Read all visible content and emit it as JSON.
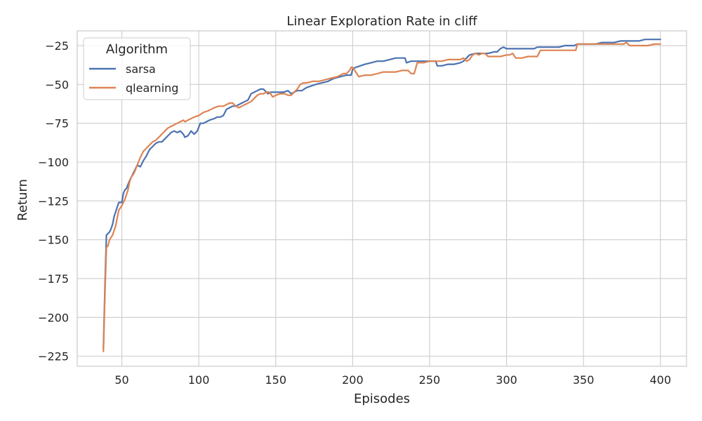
{
  "chart_data": {
    "type": "line",
    "title": "Linear Exploration Rate in cliff",
    "xlabel": "Episodes",
    "ylabel": "Return",
    "xlim": [
      21,
      417
    ],
    "ylim": [
      -231.5,
      -15.5
    ],
    "xticks": [
      50,
      100,
      150,
      200,
      250,
      300,
      350,
      400
    ],
    "yticks": [
      -25,
      -50,
      -75,
      -100,
      -125,
      -150,
      -175,
      -200,
      -225
    ],
    "grid": true,
    "legend": {
      "title": "Algorithm",
      "position": "top-left"
    },
    "colors": {
      "sarsa": "#4c72b0",
      "qlearning": "#dd8452",
      "grid": "#cccccc",
      "axes": "#cccccc"
    },
    "series": [
      {
        "name": "sarsa",
        "x": [
          38,
          39,
          40,
          42,
          43,
          44,
          45,
          46,
          48,
          50,
          51,
          52,
          53,
          55,
          57,
          58,
          60,
          62,
          63,
          64,
          66,
          68,
          70,
          72,
          74,
          76,
          78,
          80,
          82,
          84,
          86,
          88,
          90,
          91,
          93,
          95,
          97,
          99,
          101,
          103,
          105,
          107,
          110,
          112,
          114,
          116,
          118,
          120,
          122,
          124,
          126,
          128,
          130,
          132,
          134,
          136,
          138,
          140,
          142,
          145,
          147,
          150,
          153,
          155,
          158,
          160,
          162,
          164,
          167,
          170,
          173,
          176,
          180,
          184,
          188,
          192,
          196,
          199,
          200,
          202,
          205,
          208,
          212,
          216,
          220,
          224,
          228,
          232,
          234,
          235,
          238,
          242,
          246,
          250,
          254,
          255,
          258,
          262,
          266,
          270,
          272,
          274,
          276,
          280,
          284,
          288,
          292,
          294,
          296,
          298,
          300,
          302,
          306,
          310,
          314,
          318,
          320,
          322,
          326,
          330,
          334,
          338,
          342,
          344,
          346,
          350,
          354,
          358,
          362,
          366,
          370,
          374,
          378,
          380,
          382,
          386,
          390,
          394,
          398,
          400
        ],
        "y": [
          -220,
          -180,
          -147,
          -145,
          -143,
          -140,
          -135,
          -132,
          -126,
          -126,
          -120,
          -118,
          -117,
          -112,
          -108,
          -106,
          -102,
          -103,
          -101,
          -99,
          -96,
          -92,
          -90,
          -88,
          -87,
          -87,
          -85,
          -83,
          -81,
          -80,
          -81,
          -80,
          -82,
          -84,
          -83,
          -80,
          -82,
          -80,
          -75,
          -75,
          -74,
          -73,
          -72,
          -71,
          -71,
          -70,
          -66,
          -65,
          -64,
          -64,
          -63,
          -62,
          -61,
          -60,
          -56,
          -55,
          -54,
          -53,
          -53,
          -56,
          -55,
          -55,
          -55,
          -55,
          -54,
          -56,
          -55,
          -54,
          -54,
          -52,
          -51,
          -50,
          -49,
          -48,
          -46,
          -45,
          -44,
          -44,
          -40,
          -39,
          -38,
          -37,
          -36,
          -35,
          -35,
          -34,
          -33,
          -33,
          -33,
          -36,
          -35,
          -35,
          -35,
          -35,
          -35,
          -38,
          -38,
          -37,
          -37,
          -36,
          -35,
          -33,
          -31,
          -30,
          -30,
          -30,
          -29,
          -29,
          -27,
          -26,
          -27,
          -27,
          -27,
          -27,
          -27,
          -27,
          -26,
          -26,
          -26,
          -26,
          -26,
          -25,
          -25,
          -25,
          -24,
          -24,
          -24,
          -24,
          -23,
          -23,
          -23,
          -22,
          -22,
          -22,
          -22,
          -22,
          -21,
          -21,
          -21,
          -21
        ]
      },
      {
        "name": "qlearning",
        "x": [
          38,
          39,
          40,
          41,
          42,
          44,
          46,
          48,
          50,
          52,
          53,
          54,
          55,
          56,
          58,
          60,
          62,
          64,
          66,
          68,
          70,
          72,
          74,
          76,
          78,
          80,
          82,
          84,
          86,
          88,
          90,
          91,
          93,
          95,
          97,
          100,
          103,
          106,
          108,
          110,
          113,
          116,
          118,
          120,
          122,
          124,
          126,
          128,
          130,
          132,
          134,
          136,
          138,
          140,
          142,
          144,
          146,
          148,
          150,
          153,
          156,
          158,
          160,
          162,
          164,
          166,
          168,
          170,
          174,
          178,
          182,
          186,
          190,
          194,
          196,
          198,
          199,
          200,
          204,
          208,
          212,
          216,
          220,
          224,
          228,
          232,
          234,
          236,
          238,
          240,
          242,
          246,
          250,
          254,
          258,
          262,
          266,
          270,
          272,
          274,
          276,
          278,
          280,
          282,
          284,
          286,
          288,
          290,
          292,
          296,
          300,
          302,
          304,
          306,
          310,
          314,
          318,
          320,
          322,
          326,
          330,
          334,
          338,
          342,
          345,
          346,
          348,
          350,
          352,
          356,
          360,
          364,
          368,
          372,
          376,
          378,
          380,
          384,
          388,
          392,
          396,
          400
        ],
        "y": [
          -222,
          -185,
          -155,
          -154,
          -150,
          -147,
          -141,
          -131,
          -128,
          -124,
          -121,
          -118,
          -113,
          -110,
          -107,
          -102,
          -97,
          -93,
          -91,
          -89,
          -87,
          -86,
          -84,
          -82,
          -80,
          -78,
          -77,
          -76,
          -75,
          -74,
          -73,
          -74,
          -73,
          -72,
          -71,
          -70,
          -68,
          -67,
          -66,
          -65,
          -64,
          -64,
          -63,
          -62,
          -62,
          -64,
          -65,
          -64,
          -63,
          -62,
          -61,
          -59,
          -57,
          -56,
          -56,
          -55,
          -55,
          -58,
          -57,
          -56,
          -56,
          -57,
          -57,
          -55,
          -53,
          -50,
          -49,
          -49,
          -48,
          -48,
          -47,
          -46,
          -45,
          -43,
          -43,
          -41,
          -39,
          -39,
          -45,
          -44,
          -44,
          -43,
          -42,
          -42,
          -42,
          -41,
          -41,
          -41,
          -43,
          -43,
          -36,
          -36,
          -35,
          -35,
          -35,
          -34,
          -34,
          -34,
          -33,
          -35,
          -34,
          -31,
          -30,
          -31,
          -30,
          -30,
          -32,
          -32,
          -32,
          -32,
          -31,
          -31,
          -30,
          -33,
          -33,
          -32,
          -32,
          -32,
          -28,
          -28,
          -28,
          -28,
          -28,
          -28,
          -28,
          -24,
          -24,
          -24,
          -24,
          -24,
          -24,
          -24,
          -24,
          -24,
          -24,
          -23,
          -25,
          -25,
          -25,
          -25,
          -24,
          -24
        ]
      }
    ]
  }
}
